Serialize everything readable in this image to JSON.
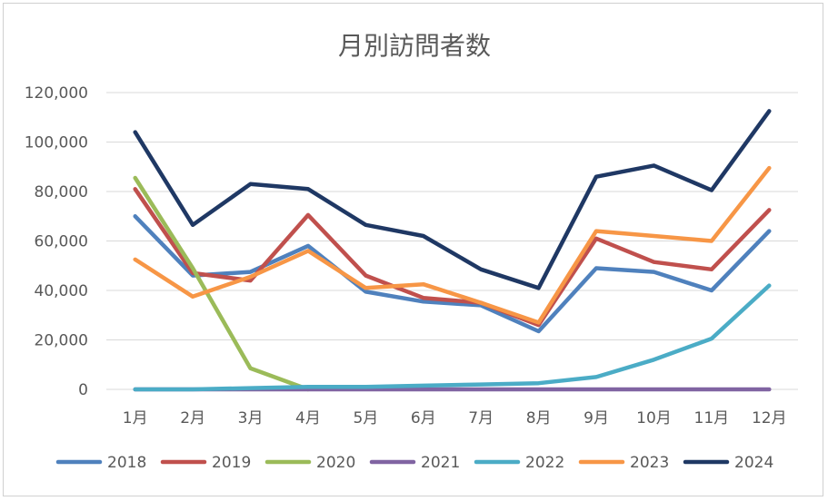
{
  "chart_data": {
    "type": "line",
    "title": "月別訪問者数",
    "xlabel": "",
    "ylabel": "",
    "categories": [
      "1月",
      "2月",
      "3月",
      "4月",
      "5月",
      "6月",
      "7月",
      "8月",
      "9月",
      "10月",
      "11月",
      "12月"
    ],
    "ylim": [
      0,
      120000
    ],
    "yticks": [
      0,
      20000,
      40000,
      60000,
      80000,
      100000,
      120000
    ],
    "ytick_labels": [
      "0",
      "20,000",
      "40,000",
      "60,000",
      "80,000",
      "100,000",
      "120,000"
    ],
    "grid": true,
    "legend_position": "bottom",
    "series": [
      {
        "name": "2018",
        "color": "#4f81bd",
        "values": [
          70000,
          46000,
          47500,
          58000,
          39500,
          35500,
          34000,
          23500,
          49000,
          47500,
          40000,
          64000
        ]
      },
      {
        "name": "2019",
        "color": "#c0504d",
        "values": [
          81000,
          47000,
          44000,
          70500,
          46000,
          37000,
          35000,
          26000,
          61000,
          51500,
          48500,
          72500
        ]
      },
      {
        "name": "2020",
        "color": "#9bbb59",
        "values": [
          85500,
          49000,
          8500,
          0,
          null,
          null,
          null,
          null,
          null,
          null,
          null,
          null
        ]
      },
      {
        "name": "2021",
        "color": "#8064a2",
        "values": [
          0,
          0,
          0,
          0,
          0,
          0,
          0,
          0,
          0,
          0,
          0,
          0
        ]
      },
      {
        "name": "2022",
        "color": "#4bacc6",
        "values": [
          0,
          0,
          500,
          1000,
          1000,
          1500,
          2000,
          2500,
          5000,
          12000,
          20500,
          42000
        ]
      },
      {
        "name": "2023",
        "color": "#f79646",
        "values": [
          52500,
          37500,
          45500,
          56000,
          41000,
          42500,
          35000,
          27000,
          64000,
          62000,
          60000,
          89500
        ]
      },
      {
        "name": "2024",
        "color": "#1f3864",
        "values": [
          104000,
          66500,
          83000,
          81000,
          66500,
          62000,
          48500,
          41000,
          86000,
          90500,
          80500,
          112500
        ]
      }
    ]
  }
}
